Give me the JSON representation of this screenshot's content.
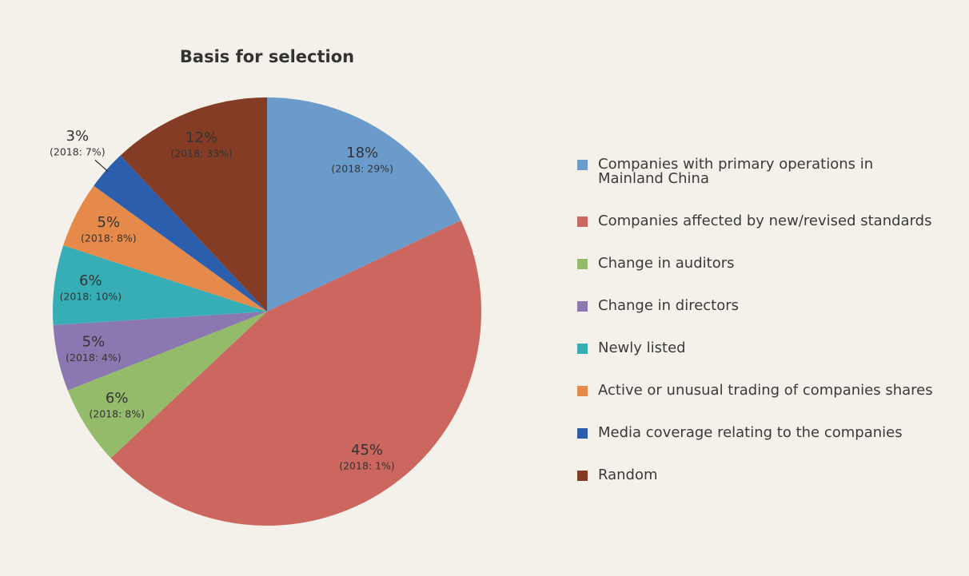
{
  "chart_data": {
    "type": "pie",
    "title": "Basis for selection",
    "categories": [
      "Companies with primary operations in Mainland China",
      "Companies affected by new/revised standards",
      "Change in auditors",
      "Change in directors",
      "Newly listed",
      "Active or unusual trading of companies shares",
      "Media coverage relating to the companies",
      "Random"
    ],
    "values": [
      18,
      45,
      6,
      5,
      6,
      5,
      3,
      12
    ],
    "value_labels": [
      "18%",
      "45%",
      "6%",
      "5%",
      "6%",
      "5%",
      "3%",
      "12%"
    ],
    "secondary_labels": [
      "(2018: 29%)",
      "(2018: 1%)",
      "(2018: 8%)",
      "(2018: 4%)",
      "(2018: 10%)",
      "(2018: 8%)",
      "(2018: 7%)",
      "(2018: 33%)"
    ],
    "colors": [
      "#6a9bcb",
      "#cc6760",
      "#93bb6a",
      "#8b78b0",
      "#37aeb6",
      "#e58a4a",
      "#2b5fae",
      "#843c24"
    ]
  }
}
